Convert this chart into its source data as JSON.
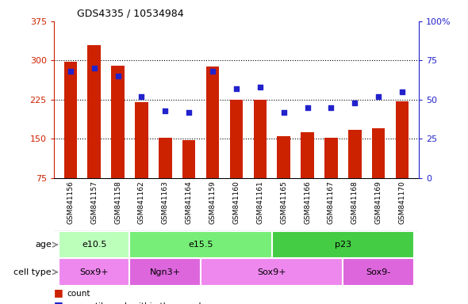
{
  "title": "GDS4335 / 10534984",
  "samples": [
    "GSM841156",
    "GSM841157",
    "GSM841158",
    "GSM841162",
    "GSM841163",
    "GSM841164",
    "GSM841159",
    "GSM841160",
    "GSM841161",
    "GSM841165",
    "GSM841166",
    "GSM841167",
    "GSM841168",
    "GSM841169",
    "GSM841170"
  ],
  "bar_values": [
    297,
    330,
    290,
    220,
    152,
    148,
    288,
    225,
    225,
    155,
    162,
    152,
    167,
    170,
    222
  ],
  "dot_values": [
    68,
    70,
    65,
    52,
    43,
    42,
    68,
    57,
    58,
    42,
    45,
    45,
    48,
    52,
    55
  ],
  "ylim_left": [
    75,
    375
  ],
  "ylim_right": [
    0,
    100
  ],
  "yticks_left": [
    75,
    150,
    225,
    300,
    375
  ],
  "ytick_labels_left": [
    "75",
    "150",
    "225",
    "300",
    "375"
  ],
  "yticks_right": [
    0,
    25,
    50,
    75,
    100
  ],
  "ytick_labels_right": [
    "0",
    "25",
    "50",
    "75",
    "100%"
  ],
  "bar_color": "#cc2200",
  "dot_color": "#2222cc",
  "age_groups": [
    {
      "label": "e10.5",
      "start": 0,
      "end": 3,
      "color": "#bbffbb"
    },
    {
      "label": "e15.5",
      "start": 3,
      "end": 9,
      "color": "#77ee77"
    },
    {
      "label": "p23",
      "start": 9,
      "end": 15,
      "color": "#44cc44"
    }
  ],
  "cell_type_groups": [
    {
      "label": "Sox9+",
      "start": 0,
      "end": 3,
      "color": "#ee88ee"
    },
    {
      "label": "Ngn3+",
      "start": 3,
      "end": 6,
      "color": "#dd66dd"
    },
    {
      "label": "Sox9+",
      "start": 6,
      "end": 12,
      "color": "#ee88ee"
    },
    {
      "label": "Sox9-",
      "start": 12,
      "end": 15,
      "color": "#dd66dd"
    }
  ],
  "left_axis_color": "#cc2200",
  "right_axis_color": "#2222cc",
  "bg_color": "#ffffff",
  "plot_bg_color": "#ffffff",
  "xlabel_bg_color": "#cccccc"
}
